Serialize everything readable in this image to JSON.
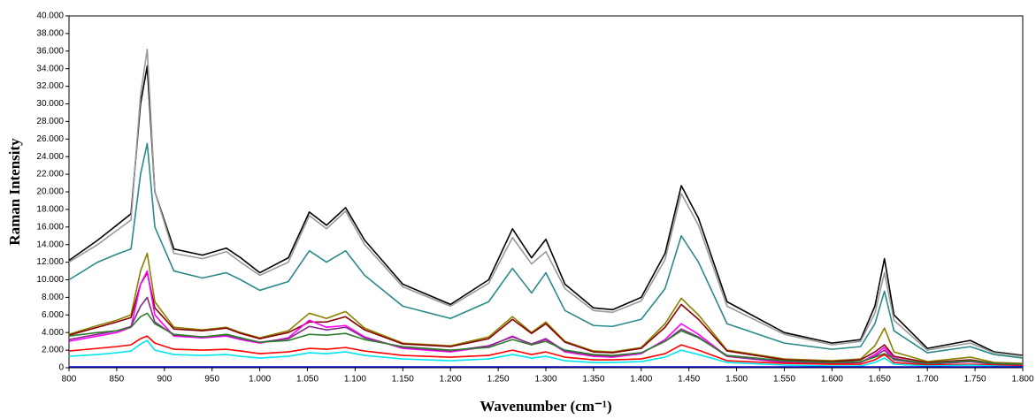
{
  "chart_data": {
    "type": "line",
    "x_label": "Wavenumber (cm⁻¹)",
    "y_label": "Raman Intensity",
    "x": [
      800,
      830,
      850,
      865,
      875,
      882,
      890,
      910,
      940,
      965,
      980,
      1000,
      1030,
      1052,
      1070,
      1090,
      1110,
      1150,
      1200,
      1240,
      1265,
      1285,
      1300,
      1320,
      1350,
      1370,
      1400,
      1425,
      1442,
      1460,
      1490,
      1550,
      1600,
      1630,
      1645,
      1655,
      1665,
      1700,
      1745,
      1770,
      1800
    ],
    "series": [
      {
        "color": "#000000",
        "values": [
          12200,
          14500,
          16200,
          17500,
          30000,
          34300,
          20000,
          13500,
          12800,
          13600,
          12500,
          10800,
          12500,
          17700,
          16200,
          18200,
          14500,
          9500,
          7200,
          10000,
          15800,
          12500,
          14600,
          9500,
          6800,
          6600,
          8000,
          13000,
          20700,
          17000,
          7500,
          4000,
          2800,
          3200,
          7000,
          12400,
          6000,
          2200,
          3100,
          1800,
          1400
        ]
      },
      {
        "color": "#9a9a9a",
        "values": [
          12000,
          14000,
          15600,
          16800,
          31000,
          36200,
          20000,
          13000,
          12400,
          13200,
          12000,
          10500,
          12000,
          17300,
          15800,
          17800,
          14000,
          9200,
          7000,
          9600,
          14800,
          11800,
          13200,
          9000,
          6500,
          6300,
          7600,
          12300,
          19800,
          16200,
          7000,
          3800,
          2600,
          3000,
          6200,
          10800,
          5400,
          2000,
          2800,
          1700,
          1300
        ]
      },
      {
        "color": "#2a8a8a",
        "values": [
          10000,
          12000,
          12900,
          13500,
          22000,
          25500,
          16000,
          11000,
          10200,
          10800,
          10000,
          8800,
          9800,
          13300,
          12000,
          13300,
          10500,
          7000,
          5600,
          7500,
          11300,
          8500,
          10800,
          6500,
          4800,
          4700,
          5500,
          9000,
          15000,
          12000,
          5000,
          2800,
          2100,
          2400,
          5000,
          8700,
          4200,
          1700,
          2400,
          1500,
          1100
        ]
      },
      {
        "color": "#8b8000",
        "values": [
          3800,
          4800,
          5400,
          6000,
          11000,
          13000,
          7500,
          4600,
          4300,
          4600,
          4000,
          3400,
          4200,
          6200,
          5600,
          6400,
          4500,
          2800,
          2500,
          3500,
          5800,
          4000,
          5200,
          3000,
          1900,
          1800,
          2300,
          5000,
          7900,
          6000,
          2000,
          1000,
          800,
          1000,
          2500,
          4500,
          1800,
          700,
          1200,
          600,
          500
        ]
      },
      {
        "color": "#8b0000",
        "values": [
          3700,
          4600,
          5200,
          5700,
          9500,
          10800,
          6800,
          4400,
          4200,
          4500,
          3900,
          3300,
          4000,
          5200,
          5200,
          5800,
          4300,
          2700,
          2400,
          3300,
          5500,
          3900,
          5000,
          2900,
          1800,
          1700,
          2200,
          4600,
          7200,
          5500,
          1900,
          900,
          700,
          900,
          1800,
          2600,
          1300,
          600,
          900,
          500,
          400
        ]
      },
      {
        "color": "#ff00ff",
        "values": [
          3000,
          3600,
          4000,
          4600,
          9500,
          11000,
          6000,
          3600,
          3400,
          3600,
          3200,
          2800,
          3400,
          5400,
          4600,
          4800,
          3500,
          2200,
          1800,
          2400,
          3600,
          2600,
          3200,
          1800,
          1300,
          1200,
          1600,
          3200,
          5000,
          3800,
          1300,
          600,
          500,
          600,
          1500,
          2300,
          1100,
          400,
          700,
          400,
          300
        ]
      },
      {
        "color": "#8a2a8a",
        "values": [
          3200,
          3800,
          4200,
          4700,
          7000,
          8000,
          5200,
          3700,
          3500,
          3700,
          3300,
          2900,
          3300,
          4700,
          4300,
          4600,
          3400,
          2300,
          1900,
          2500,
          3500,
          2700,
          3300,
          1900,
          1400,
          1300,
          1700,
          3000,
          4400,
          3500,
          1300,
          700,
          500,
          600,
          1300,
          2000,
          900,
          400,
          700,
          400,
          300
        ]
      },
      {
        "color": "#2e7d2e",
        "values": [
          3600,
          4000,
          4200,
          4600,
          5800,
          6200,
          5000,
          3800,
          3500,
          3800,
          3400,
          2900,
          3100,
          3800,
          3700,
          3900,
          3200,
          2400,
          2000,
          2300,
          3200,
          2600,
          3000,
          2000,
          1500,
          1400,
          1700,
          3000,
          4200,
          3400,
          1400,
          800,
          600,
          700,
          1200,
          1600,
          1000,
          500,
          800,
          500,
          400
        ]
      },
      {
        "color": "#ff0000",
        "values": [
          1900,
          2200,
          2400,
          2600,
          3300,
          3600,
          2800,
          2100,
          2000,
          2100,
          1900,
          1600,
          1800,
          2200,
          2100,
          2300,
          1900,
          1400,
          1200,
          1400,
          2000,
          1500,
          1800,
          1200,
          900,
          900,
          1000,
          1600,
          2600,
          2000,
          800,
          500,
          400,
          400,
          900,
          1500,
          600,
          300,
          400,
          300,
          200
        ]
      },
      {
        "color": "#00e5ee",
        "values": [
          1300,
          1500,
          1700,
          1900,
          2700,
          3100,
          2000,
          1500,
          1400,
          1500,
          1300,
          1100,
          1300,
          1700,
          1600,
          1800,
          1400,
          1000,
          800,
          1000,
          1500,
          1100,
          1300,
          800,
          600,
          600,
          700,
          1200,
          2000,
          1500,
          600,
          300,
          200,
          200,
          600,
          1100,
          400,
          200,
          300,
          200,
          100
        ]
      },
      {
        "color": "#0000cc",
        "values": [
          100,
          100,
          100,
          100,
          100,
          100,
          100,
          100,
          100,
          100,
          100,
          100,
          100,
          100,
          100,
          100,
          100,
          100,
          100,
          100,
          100,
          100,
          100,
          100,
          100,
          100,
          100,
          100,
          100,
          100,
          100,
          100,
          100,
          100,
          100,
          100,
          100,
          100,
          100,
          100,
          100
        ]
      }
    ],
    "xlim": [
      800,
      1800
    ],
    "xticks": [
      800,
      850,
      900,
      950,
      {
        "value": 1000,
        "label": "1.000"
      },
      {
        "value": 1050,
        "label": "1.050"
      },
      {
        "value": 1100,
        "label": "1.100"
      },
      {
        "value": 1150,
        "label": "1.150"
      },
      {
        "value": 1200,
        "label": "1.200"
      },
      {
        "value": 1250,
        "label": "1.250"
      },
      {
        "value": 1300,
        "label": "1.300"
      },
      {
        "value": 1350,
        "label": "1.350"
      },
      {
        "value": 1400,
        "label": "1.400"
      },
      {
        "value": 1450,
        "label": "1.450"
      },
      {
        "value": 1500,
        "label": "1.500"
      },
      {
        "value": 1550,
        "label": "1.550"
      },
      {
        "value": 1600,
        "label": "1.600"
      },
      {
        "value": 1650,
        "label": "1.650"
      },
      {
        "value": 1700,
        "label": "1.700"
      },
      {
        "value": 1750,
        "label": "1.750"
      },
      {
        "value": 1800,
        "label": "1.800"
      }
    ],
    "ylim": [
      0,
      40000
    ],
    "yticks": [
      0,
      {
        "value": 2000,
        "label": "2.000"
      },
      {
        "value": 4000,
        "label": "4.000"
      },
      {
        "value": 6000,
        "label": "6.000"
      },
      {
        "value": 8000,
        "label": "8.000"
      },
      {
        "value": 10000,
        "label": "10.000"
      },
      {
        "value": 12000,
        "label": "12.000"
      },
      {
        "value": 14000,
        "label": "14.000"
      },
      {
        "value": 16000,
        "label": "16.000"
      },
      {
        "value": 18000,
        "label": "18.000"
      },
      {
        "value": 20000,
        "label": "20.000"
      },
      {
        "value": 22000,
        "label": "22.000"
      },
      {
        "value": 24000,
        "label": "24.000"
      },
      {
        "value": 26000,
        "label": "26.000"
      },
      {
        "value": 28000,
        "label": "28.000"
      },
      {
        "value": 30000,
        "label": "30.000"
      },
      {
        "value": 32000,
        "label": "32.000"
      },
      {
        "value": 34000,
        "label": "34.000"
      },
      {
        "value": 36000,
        "label": "36.000"
      },
      {
        "value": 38000,
        "label": "38.000"
      },
      {
        "value": 40000,
        "label": "40.000"
      }
    ]
  }
}
